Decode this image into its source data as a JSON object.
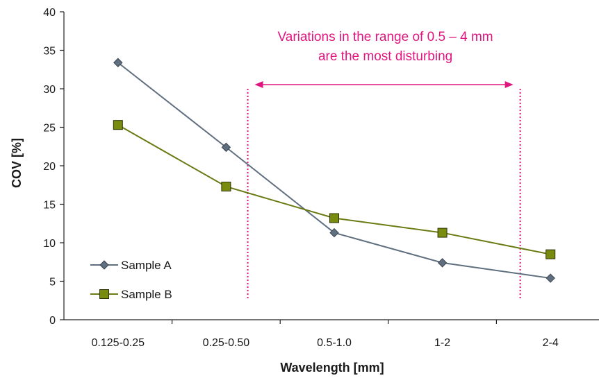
{
  "chart_data": {
    "type": "line",
    "categories": [
      "0.125-0.25",
      "0.25-0.50",
      "0.5-1.0",
      "1-2",
      "2-4"
    ],
    "series": [
      {
        "name": "Sample A",
        "values": [
          33.4,
          22.4,
          11.3,
          7.4,
          5.4
        ],
        "color": "#5f6f7f",
        "marker": "diamond"
      },
      {
        "name": "Sample B",
        "values": [
          25.3,
          17.3,
          13.2,
          11.3,
          8.5
        ],
        "color": "#6b7a12",
        "marker_fill": "#7a8c10",
        "marker": "square"
      }
    ],
    "title": "",
    "xlabel": "Wavelength [mm]",
    "ylabel": "COV [%]",
    "ylim": [
      0,
      40
    ],
    "yticks": [
      0,
      5,
      10,
      15,
      20,
      25,
      30,
      35,
      40
    ],
    "grid": false,
    "legend": "bottom-left",
    "annotation": {
      "lines": [
        "Variations in the range of 0.5 – 4 mm",
        "are the most disturbing"
      ],
      "color": "#e0157f",
      "range_from": 1.7,
      "range_to": 4.22
    }
  }
}
